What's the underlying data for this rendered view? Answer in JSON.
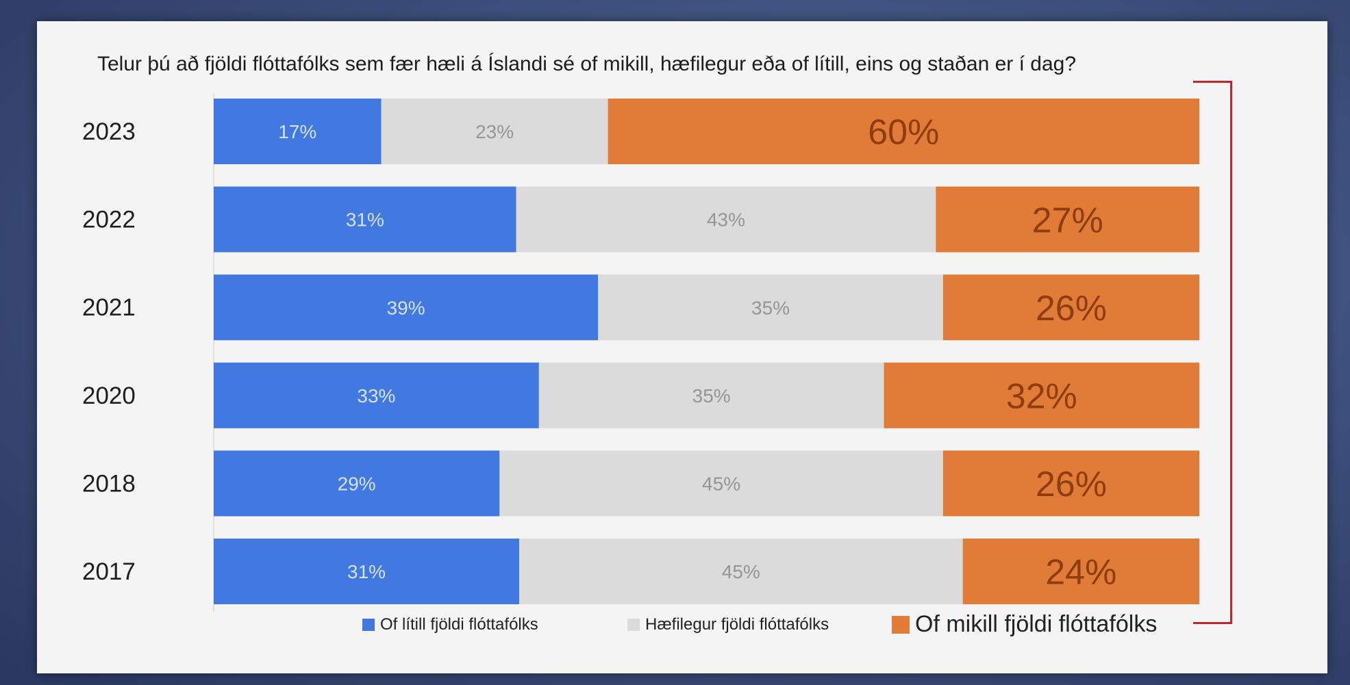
{
  "chart_data": {
    "type": "bar",
    "orientation": "horizontal",
    "stacked": true,
    "title": "Telur þú að fjöldi flóttafólks sem fær hæli á Íslandi sé of mikill, hæfilegur eða of lítill, eins og staðan er í dag?",
    "categories": [
      "2023",
      "2022",
      "2021",
      "2020",
      "2018",
      "2017"
    ],
    "series": [
      {
        "name": "Of lítill fjöldi flóttafólks",
        "color": "#4279e0",
        "label_color": "#d4e1fb",
        "values": [
          17,
          31,
          39,
          33,
          29,
          31
        ],
        "labels": [
          "17%",
          "31%",
          "39%",
          "33%",
          "29%",
          "31%"
        ]
      },
      {
        "name": "Hæfilegur fjöldi flóttafólks",
        "color": "#dbdbdb",
        "label_color": "#959595",
        "values": [
          23,
          43,
          35,
          35,
          45,
          45
        ],
        "labels": [
          "23%",
          "43%",
          "35%",
          "35%",
          "45%",
          "45%"
        ]
      },
      {
        "name": "Of mikill fjöldi flóttafólks",
        "color": "#e07c38",
        "label_color": "#8f3d10",
        "values": [
          60,
          27,
          26,
          32,
          26,
          24
        ],
        "labels": [
          "60%",
          "27%",
          "26%",
          "32%",
          "26%",
          "24%"
        ]
      }
    ],
    "legend_position": "bottom",
    "grid": false
  }
}
